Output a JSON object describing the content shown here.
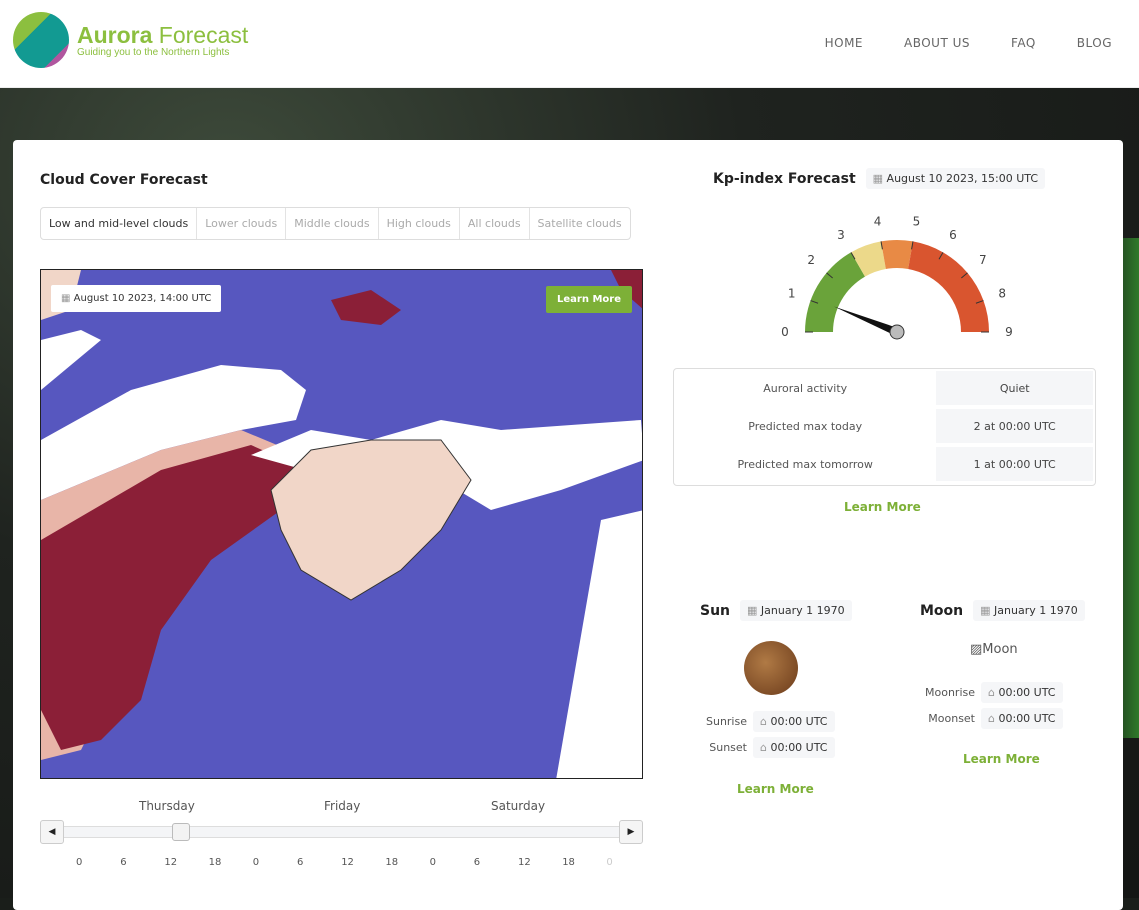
{
  "header": {
    "brand_bold": "Aurora",
    "brand_light": " Forecast",
    "tagline": "Guiding you to the Northern Lights",
    "nav": [
      "HOME",
      "ABOUT US",
      "FAQ",
      "BLOG"
    ]
  },
  "cloud": {
    "title": "Cloud Cover Forecast",
    "tabs": [
      "Low and mid-level clouds",
      "Lower clouds",
      "Middle clouds",
      "High clouds",
      "All clouds",
      "Satellite clouds"
    ],
    "active_tab": "Low and mid-level clouds",
    "map_time": "August 10 2023, 14:00 UTC",
    "learn_more": "Learn More",
    "days": [
      "Thursday",
      "Friday",
      "Saturday"
    ],
    "hour_ticks": [
      "0",
      "6",
      "12",
      "18",
      "0",
      "6",
      "12",
      "18",
      "0",
      "6",
      "12",
      "18",
      "0"
    ],
    "slider_position_hour": 14,
    "colors": {
      "clear": "#5757bf",
      "cloud_white": "#ffffff",
      "cloud_red": "#8b1f37"
    }
  },
  "kp": {
    "title": "Kp-index Forecast",
    "time": "August 10 2023, 15:00 UTC",
    "gauge": {
      "min": 0,
      "max": 9,
      "value": 1.1,
      "labels": [
        "0",
        "1",
        "2",
        "3",
        "4",
        "5",
        "6",
        "7",
        "8",
        "9"
      ],
      "bands": [
        {
          "from": 0,
          "to": 3,
          "color": "#6aa33a"
        },
        {
          "from": 3,
          "to": 4,
          "color": "#ecd98a"
        },
        {
          "from": 4,
          "to": 5,
          "color": "#e88a45"
        },
        {
          "from": 5,
          "to": 9,
          "color": "#d9552f"
        }
      ]
    },
    "rows": [
      {
        "label": "Auroral activity",
        "value": "Quiet"
      },
      {
        "label": "Predicted max today",
        "value": "2 at 00:00 UTC"
      },
      {
        "label": "Predicted max tomorrow",
        "value": "1 at 00:00 UTC"
      }
    ],
    "learn_more": "Learn More"
  },
  "sun": {
    "title": "Sun",
    "date": "January 1 1970",
    "sunrise_label": "Sunrise",
    "sunrise": "00:00 UTC",
    "sunset_label": "Sunset",
    "sunset": "00:00 UTC",
    "learn_more": "Learn More"
  },
  "moon": {
    "title": "Moon",
    "date": "January 1 1970",
    "image_alt": "Moon",
    "moonrise_label": "Moonrise",
    "moonrise": "00:00 UTC",
    "moonset_label": "Moonset",
    "moonset": "00:00 UTC",
    "learn_more": "Learn More"
  }
}
